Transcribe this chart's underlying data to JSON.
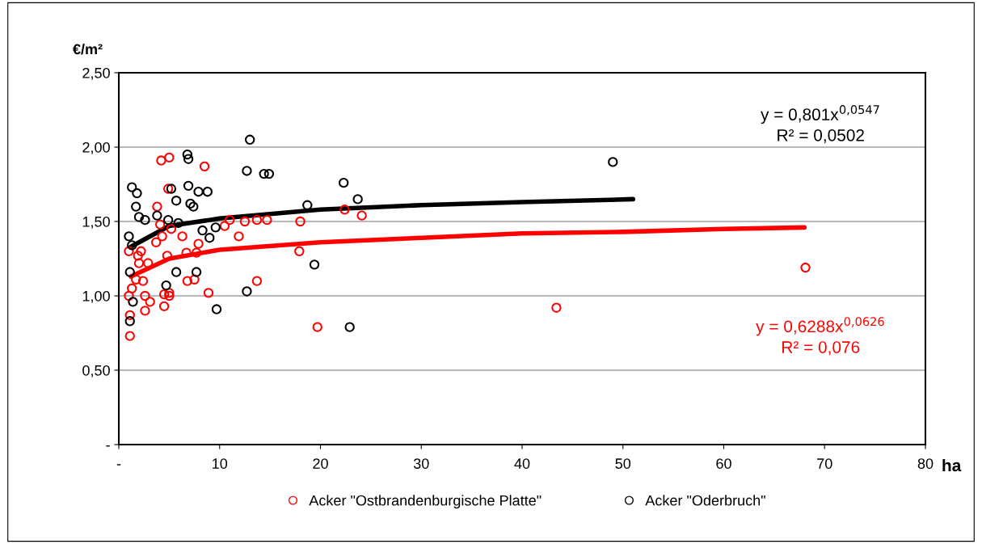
{
  "chart_data": {
    "type": "scatter",
    "xlabel": "ha",
    "ylabel": "€/m²",
    "xlim": [
      0,
      80
    ],
    "xticks": [
      {
        "value": 0,
        "label": "-"
      },
      10,
      20,
      30,
      40,
      50,
      60,
      70,
      80
    ],
    "ylim": [
      0,
      2.5
    ],
    "yticks": [
      {
        "value": 0,
        "label": "-"
      },
      {
        "value": 0.5,
        "label": "0,50"
      },
      {
        "value": 1,
        "label": "1,00"
      },
      {
        "value": 1.5,
        "label": "1,50"
      },
      {
        "value": 2,
        "label": "2,00"
      },
      {
        "value": 2.5,
        "label": "2,50"
      }
    ],
    "grid": "y",
    "legend": "bottom",
    "series": [
      {
        "name": "Acker \"Ostbrandenburgische Platte\"",
        "color": "#ff0000",
        "marker": "circle",
        "x": [
          1.1,
          1.1,
          1.0,
          1.3,
          1.0,
          1.7,
          2.0,
          1.9,
          2.2,
          2.4,
          2.6,
          2.6,
          2.9,
          3.1,
          3.7,
          3.8,
          4.2,
          4.1,
          4.3,
          4.5,
          4.5,
          4.8,
          5.0,
          5.0,
          4.9,
          5.0,
          5.2,
          6.3,
          6.7,
          6.8,
          7.5,
          7.7,
          7.9,
          8.5,
          8.9,
          10.5,
          11.0,
          11.9,
          12.5,
          13.7,
          13.7,
          14.7,
          17.9,
          18.0,
          19.7,
          22.4,
          24.1,
          43.4,
          68.1
        ],
        "values": [
          0.73,
          0.87,
          1.0,
          1.05,
          1.3,
          1.11,
          1.22,
          1.27,
          1.3,
          1.1,
          1.0,
          0.9,
          1.22,
          0.96,
          1.36,
          1.6,
          1.91,
          1.48,
          1.4,
          1.01,
          0.93,
          1.27,
          1.0,
          1.93,
          1.72,
          1.02,
          1.45,
          1.4,
          1.29,
          1.1,
          1.11,
          1.29,
          1.35,
          1.87,
          1.02,
          1.47,
          1.51,
          1.4,
          1.5,
          1.51,
          1.1,
          1.51,
          1.3,
          1.5,
          0.79,
          1.58,
          1.54,
          0.92,
          1.19
        ]
      },
      {
        "name": "Acker \"Oderbruch\"",
        "color": "#000000",
        "marker": "circle",
        "x": [
          1.0,
          1.1,
          1.3,
          1.7,
          1.8,
          2.0,
          1.1,
          1.4,
          1.3,
          2.6,
          3.8,
          4.9,
          4.7,
          5.2,
          5.7,
          5.7,
          5.9,
          6.8,
          6.9,
          6.9,
          7.1,
          7.4,
          7.9,
          8.3,
          7.7,
          8.8,
          9.0,
          9.6,
          9.7,
          12.7,
          13.0,
          12.7,
          14.4,
          14.9,
          18.7,
          19.4,
          22.3,
          22.9,
          23.7,
          49.0
        ],
        "values": [
          1.4,
          0.83,
          1.73,
          1.6,
          1.69,
          1.53,
          1.16,
          0.96,
          1.34,
          1.51,
          1.54,
          1.51,
          1.07,
          1.72,
          1.64,
          1.16,
          1.49,
          1.95,
          1.92,
          1.74,
          1.62,
          1.6,
          1.7,
          1.44,
          1.16,
          1.7,
          1.39,
          1.46,
          0.91,
          1.84,
          2.05,
          1.03,
          1.82,
          1.82,
          1.61,
          1.21,
          1.76,
          0.79,
          1.65,
          1.9
        ]
      },
      {
        "type": "line",
        "color": "#000000",
        "marker": "none",
        "x": [
          1.2,
          5,
          10,
          20,
          30,
          40,
          51
        ],
        "values": [
          1.33,
          1.47,
          1.52,
          1.58,
          1.61,
          1.63,
          1.65
        ]
      },
      {
        "type": "line",
        "color": "#ff0000",
        "marker": "none",
        "x": [
          1.2,
          5,
          10,
          20,
          30,
          40,
          50,
          60,
          68
        ],
        "values": [
          1.13,
          1.25,
          1.31,
          1.36,
          1.39,
          1.42,
          1.43,
          1.45,
          1.46
        ]
      }
    ],
    "annotations": [
      "y = 0,801x$^{0,0547}$\nR² = 0,0502",
      "y = 0,6288x$^{0,0626}$\nR² = 0,076"
    ]
  }
}
